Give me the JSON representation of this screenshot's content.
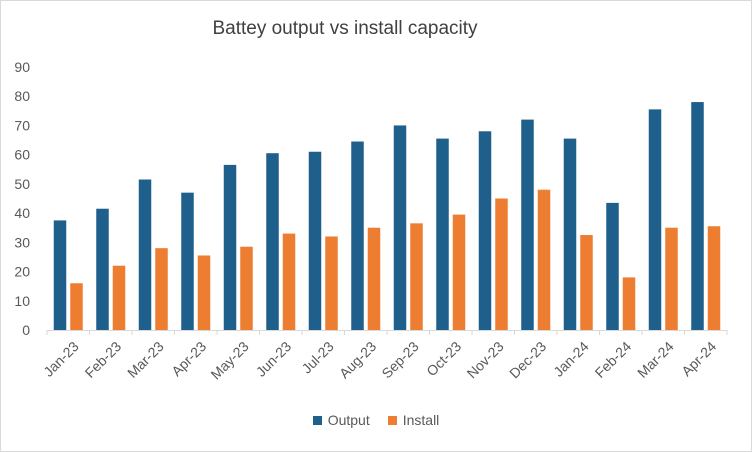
{
  "chart_data": {
    "type": "bar",
    "title": "Battey output vs install capacity",
    "categories": [
      "Jan-23",
      "Feb-23",
      "Mar-23",
      "Apr-23",
      "May-23",
      "Jun-23",
      "Jul-23",
      "Aug-23",
      "Sep-23",
      "Oct-23",
      "Nov-23",
      "Dec-23",
      "Jan-24",
      "Feb-24",
      "Mar-24",
      "Apr-24"
    ],
    "series": [
      {
        "name": "Output",
        "color": "#1f5f8b",
        "values": [
          37.5,
          41.5,
          51.5,
          47,
          56.5,
          60.5,
          61,
          64.5,
          70,
          65.5,
          68,
          72,
          65.5,
          43.5,
          75.5,
          78
        ]
      },
      {
        "name": "Install",
        "color": "#ed7d31",
        "values": [
          16,
          22,
          28,
          25.5,
          28.5,
          33,
          32,
          35,
          36.5,
          39.5,
          45,
          48,
          32.5,
          18,
          35,
          35.5
        ]
      }
    ],
    "ylim": [
      0,
      90
    ],
    "yticks": [
      0,
      10,
      20,
      30,
      40,
      50,
      60,
      70,
      80,
      90
    ],
    "grid": false,
    "legend": "bottom"
  }
}
